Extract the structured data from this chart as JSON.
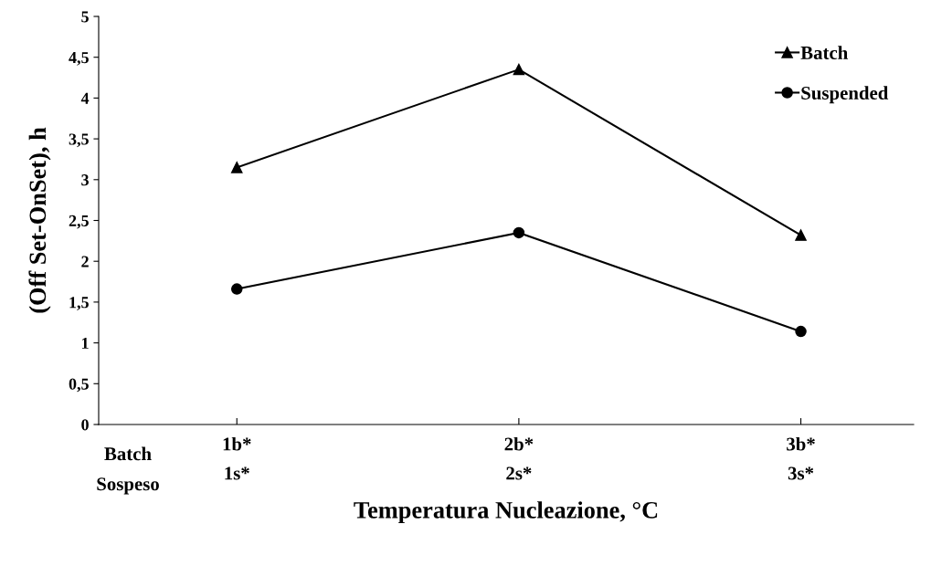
{
  "chart_data": {
    "type": "line",
    "xlabel": "Temperatura Nucleazione, °C",
    "ylabel": "(Off Set-OnSet), h",
    "categories": [
      "1b*\n1s*",
      "2b*\n2s*",
      "3b*\n3s*"
    ],
    "annotations": [
      "Batch",
      "Sospeso"
    ],
    "series": [
      {
        "name": "Batch",
        "color": "#000000",
        "marker": "triangle",
        "values": [
          3.15,
          4.35,
          2.32
        ]
      },
      {
        "name": "Suspended",
        "color": "#000000",
        "marker": "circle",
        "values": [
          1.66,
          2.35,
          1.14
        ]
      }
    ],
    "ylim": [
      0,
      5
    ],
    "yticks": [
      0,
      {
        "value": 0.5,
        "label": "0,5"
      },
      1,
      {
        "value": 1.5,
        "label": "1,5"
      },
      2,
      {
        "value": 2.5,
        "label": "2,5"
      },
      3,
      {
        "value": 3.5,
        "label": "3,5"
      },
      4,
      {
        "value": 4.5,
        "label": "4,5"
      },
      5
    ],
    "grid": false,
    "legend": "top right",
    "line_style": "solid"
  }
}
